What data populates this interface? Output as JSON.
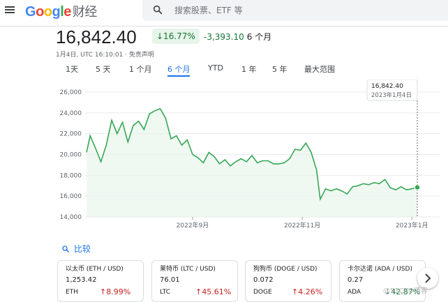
{
  "header": {
    "logo_google": [
      "G",
      "o",
      "o",
      "g",
      "l",
      "e"
    ],
    "logo_suffix": "财经",
    "search_placeholder": "搜索股票、ETF 等"
  },
  "quote": {
    "price": "16,842.40",
    "change_pct": "↓16.77%",
    "change_abs": "-3,393.10",
    "period": "6 个月",
    "timestamp": "1月4日, UTC 16:10:01 · 免责声明"
  },
  "tabs": [
    {
      "label": "1天",
      "active": false
    },
    {
      "label": "5 天",
      "active": false
    },
    {
      "label": "1 个月",
      "active": false
    },
    {
      "label": "6 个月",
      "active": true
    },
    {
      "label": "YTD",
      "active": false
    },
    {
      "label": "1 年",
      "active": false
    },
    {
      "label": "5 年",
      "active": false
    },
    {
      "label": "最大范围",
      "active": false
    }
  ],
  "chart_data": {
    "type": "line",
    "title": "",
    "xlabel": "",
    "ylabel": "",
    "ylim": [
      14000,
      26000
    ],
    "yticks": [
      "26,000",
      "24,000",
      "22,000",
      "20,000",
      "18,000",
      "16,000",
      "14,000"
    ],
    "ytick_values": [
      26000,
      24000,
      22000,
      20000,
      18000,
      16000,
      14000
    ],
    "xticks": [
      {
        "label": "2022年9月",
        "x": "2022-09-01"
      },
      {
        "label": "2022年11月",
        "x": "2022-11-01"
      },
      {
        "label": "2023年1月",
        "x": "2023-01-01"
      }
    ],
    "x_range": [
      "2022-07-04",
      "2023-01-04"
    ],
    "grid": true,
    "line_color": "#34a853",
    "tooltip": {
      "value": "16,842.40",
      "date": "2023年1月4日"
    },
    "series": [
      {
        "x": [
          "2022-07-04",
          "2022-07-06",
          "2022-07-09",
          "2022-07-12",
          "2022-07-15",
          "2022-07-18",
          "2022-07-21",
          "2022-07-24",
          "2022-07-27",
          "2022-07-30",
          "2022-08-02",
          "2022-08-05",
          "2022-08-08",
          "2022-08-11",
          "2022-08-14",
          "2022-08-17",
          "2022-08-20",
          "2022-08-23",
          "2022-08-26",
          "2022-08-29",
          "2022-09-01",
          "2022-09-04",
          "2022-09-07",
          "2022-09-10",
          "2022-09-13",
          "2022-09-16",
          "2022-09-19",
          "2022-09-22",
          "2022-09-25",
          "2022-09-28",
          "2022-10-01",
          "2022-10-04",
          "2022-10-07",
          "2022-10-10",
          "2022-10-13",
          "2022-10-16",
          "2022-10-19",
          "2022-10-22",
          "2022-10-25",
          "2022-10-28",
          "2022-10-31",
          "2022-11-03",
          "2022-11-06",
          "2022-11-09",
          "2022-11-11",
          "2022-11-14",
          "2022-11-17",
          "2022-11-20",
          "2022-11-23",
          "2022-11-26",
          "2022-11-29",
          "2022-12-02",
          "2022-12-05",
          "2022-12-08",
          "2022-12-11",
          "2022-12-14",
          "2022-12-17",
          "2022-12-20",
          "2022-12-23",
          "2022-12-26",
          "2022-12-29",
          "2023-01-01",
          "2023-01-04"
        ],
        "values": [
          20200,
          21800,
          20600,
          19300,
          20900,
          23300,
          22000,
          23100,
          21200,
          22800,
          23200,
          22400,
          23900,
          24200,
          24400,
          23500,
          21500,
          21800,
          20900,
          21400,
          20000,
          19700,
          19200,
          20200,
          19800,
          19100,
          19500,
          18900,
          19300,
          19600,
          19300,
          19900,
          19200,
          19400,
          19400,
          19100,
          19100,
          19200,
          19600,
          20500,
          20400,
          21100,
          20200,
          18500,
          15700,
          16700,
          16500,
          16700,
          16500,
          16200,
          16900,
          17000,
          17200,
          17100,
          17300,
          17200,
          17600,
          16800,
          16600,
          16900,
          16600,
          16700,
          16842
        ]
      }
    ]
  },
  "compare": {
    "label": "比较"
  },
  "cards": [
    {
      "name": "以太币 (ETH / USD)",
      "value": "1,253.42",
      "symbol": "ETH",
      "change": "↑8.99%",
      "dir": "up"
    },
    {
      "name": "莱特币 (LTC / USD)",
      "value": "76.01",
      "symbol": "LTC",
      "change": "↑45.61%",
      "dir": "up"
    },
    {
      "name": "狗狗币 (DOGE / USD)",
      "value": "0.072",
      "symbol": "DOGE",
      "change": "↑4.26%",
      "dir": "up"
    },
    {
      "name": "卡尔达诺 (ADA / USD)",
      "value": "0.27",
      "symbol": "ADA",
      "change": "↓42.87%",
      "dir": "down"
    }
  ],
  "watermark": "@51CTO博客"
}
